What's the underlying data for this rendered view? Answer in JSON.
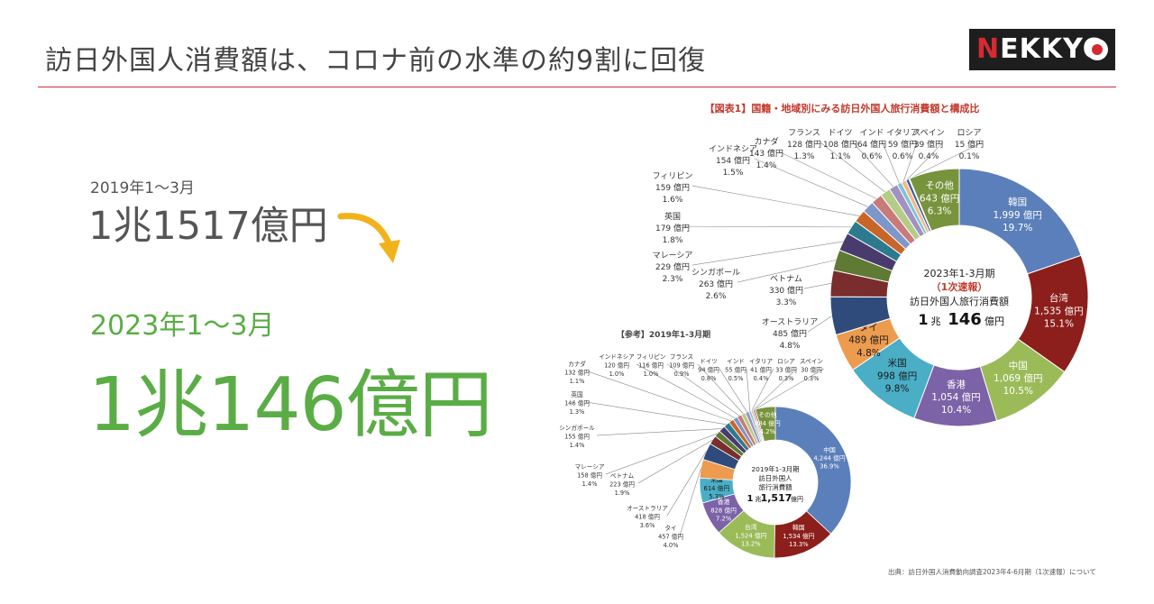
{
  "page": {
    "title": "訪日外国人消費額は、コロナ前の水準の約9割に回復",
    "logo": {
      "letters": "NEKKYO",
      "accent_letter": "N",
      "rest": "EKKYO"
    },
    "summary": {
      "period_2019": "2019年1〜3月",
      "value_2019": "1兆1517億円",
      "period_2023": "2023年1〜3月",
      "value_2023": "1兆146億円"
    },
    "source": "出典：訪日外国人消費動向調査2023年4-6月期（1次速報）について"
  },
  "colors": {
    "accent_green": "#5aad45",
    "title_rule": "#c9303a",
    "arrow": "#f2b21b",
    "chart_title_red": "#c0392b"
  },
  "chart_data": [
    {
      "type": "pie",
      "style": "donut",
      "title": "【図表1】国籍・地域別にみる訪日外国人旅行消費額と構成比",
      "center": {
        "period": "2023年1-3月期",
        "note": "（1次速報）",
        "label": "訪日外国人旅行消費額",
        "value_prefix": "1",
        "value_unit1": "兆",
        "value_main": "146",
        "value_unit2": "億円"
      },
      "slices": [
        {
          "name": "韓国",
          "value": "1,999 億円",
          "share": "19.7%",
          "pct": 19.7,
          "color": "#5b7fba"
        },
        {
          "name": "台湾",
          "value": "1,535 億円",
          "share": "15.1%",
          "pct": 15.1,
          "color": "#8c1f1b"
        },
        {
          "name": "中国",
          "value": "1,069 億円",
          "share": "10.5%",
          "pct": 10.5,
          "color": "#9bbb59"
        },
        {
          "name": "香港",
          "value": "1,054 億円",
          "share": "10.4%",
          "pct": 10.4,
          "color": "#7c62a6"
        },
        {
          "name": "米国",
          "value": "998 億円",
          "share": "9.8%",
          "pct": 9.8,
          "color": "#4aaec6"
        },
        {
          "name": "タイ",
          "value": "489 億円",
          "share": "4.8%",
          "pct": 4.8,
          "color": "#ed9b4f"
        },
        {
          "name": "オーストラリア",
          "value": "485 億円",
          "share": "4.8%",
          "pct": 4.8,
          "color": "#2e4b7b"
        },
        {
          "name": "ベトナム",
          "value": "330 億円",
          "share": "3.3%",
          "pct": 3.3,
          "color": "#7a2d2d"
        },
        {
          "name": "シンガポール",
          "value": "263 億円",
          "share": "2.6%",
          "pct": 2.6,
          "color": "#5e7a34"
        },
        {
          "name": "マレーシア",
          "value": "229 億円",
          "share": "2.3%",
          "pct": 2.3,
          "color": "#4a3b6e"
        },
        {
          "name": "英国",
          "value": "179 億円",
          "share": "1.8%",
          "pct": 1.8,
          "color": "#2d7a8e"
        },
        {
          "name": "フィリピン",
          "value": "159 億円",
          "share": "1.6%",
          "pct": 1.6,
          "color": "#c8662a"
        },
        {
          "name": "インドネシア",
          "value": "154 億円",
          "share": "1.5%",
          "pct": 1.5,
          "color": "#7d97c8"
        },
        {
          "name": "カナダ",
          "value": "143 億円",
          "share": "1.4%",
          "pct": 1.4,
          "color": "#c97b79"
        },
        {
          "name": "フランス",
          "value": "128 億円",
          "share": "1.3%",
          "pct": 1.3,
          "color": "#b3cd86"
        },
        {
          "name": "ドイツ",
          "value": "108 億円",
          "share": "1.1%",
          "pct": 1.1,
          "color": "#a391c2"
        },
        {
          "name": "インド",
          "value": "64 億円",
          "share": "0.6%",
          "pct": 0.6,
          "color": "#7fc4d6"
        },
        {
          "name": "イタリア",
          "value": "59 億円",
          "share": "0.6%",
          "pct": 0.6,
          "color": "#f3b884"
        },
        {
          "name": "スペイン",
          "value": "39 億円",
          "share": "0.4%",
          "pct": 0.4,
          "color": "#3b5e9a"
        },
        {
          "name": "ロシア",
          "value": "15 億円",
          "share": "0.1%",
          "pct": 0.1,
          "color": "#a33a35"
        },
        {
          "name": "その他",
          "value": "643 億円",
          "share": "6.3%",
          "pct": 6.3,
          "color": "#77933c"
        }
      ]
    },
    {
      "type": "pie",
      "style": "donut",
      "title": "【参考】2019年1-3月期",
      "center": {
        "period": "2019年1-3月期",
        "label1": "訪日外国人",
        "label2": "旅行消費額",
        "value_prefix": "1",
        "value_unit1": "兆",
        "value_main": "1,517",
        "value_unit2": "億円"
      },
      "slices": [
        {
          "name": "中国",
          "value": "4,244 億円",
          "share": "36.9%",
          "pct": 36.9,
          "color": "#5b7fba"
        },
        {
          "name": "韓国",
          "value": "1,534 億円",
          "share": "13.3%",
          "pct": 13.3,
          "color": "#8c1f1b"
        },
        {
          "name": "台湾",
          "value": "1,524 億円",
          "share": "13.2%",
          "pct": 13.2,
          "color": "#9bbb59"
        },
        {
          "name": "香港",
          "value": "828 億円",
          "share": "7.2%",
          "pct": 7.2,
          "color": "#7c62a6"
        },
        {
          "name": "米国",
          "value": "614 億円",
          "share": "5.3%",
          "pct": 5.3,
          "color": "#4aaec6"
        },
        {
          "name": "タイ",
          "value": "457 億円",
          "share": "4.0%",
          "pct": 4.0,
          "color": "#ed9b4f"
        },
        {
          "name": "オーストラリア",
          "value": "418 億円",
          "share": "3.6%",
          "pct": 3.6,
          "color": "#2e4b7b"
        },
        {
          "name": "ベトナム",
          "value": "223 億円",
          "share": "1.9%",
          "pct": 1.9,
          "color": "#7a2d2d"
        },
        {
          "name": "マレーシア",
          "value": "158 億円",
          "share": "1.4%",
          "pct": 1.4,
          "color": "#5e7a34"
        },
        {
          "name": "シンガポール",
          "value": "155 億円",
          "share": "1.4%",
          "pct": 1.4,
          "color": "#4a3b6e"
        },
        {
          "name": "英国",
          "value": "146 億円",
          "share": "1.3%",
          "pct": 1.3,
          "color": "#2d7a8e"
        },
        {
          "name": "カナダ",
          "value": "132 億円",
          "share": "1.1%",
          "pct": 1.1,
          "color": "#c8662a"
        },
        {
          "name": "インドネシア",
          "value": "120 億円",
          "share": "1.0%",
          "pct": 1.0,
          "color": "#7d97c8"
        },
        {
          "name": "フィリピン",
          "value": "116 億円",
          "share": "1.0%",
          "pct": 1.0,
          "color": "#c97b79"
        },
        {
          "name": "フランス",
          "value": "109 億円",
          "share": "0.9%",
          "pct": 0.9,
          "color": "#b3cd86"
        },
        {
          "name": "ドイツ",
          "value": "94 億円",
          "share": "0.8%",
          "pct": 0.8,
          "color": "#a391c2"
        },
        {
          "name": "インド",
          "value": "55 億円",
          "share": "0.5%",
          "pct": 0.5,
          "color": "#7fc4d6"
        },
        {
          "name": "イタリア",
          "value": "41 億円",
          "share": "0.4%",
          "pct": 0.4,
          "color": "#f3b884"
        },
        {
          "name": "ロシア",
          "value": "33 億円",
          "share": "0.3%",
          "pct": 0.3,
          "color": "#3b5e9a"
        },
        {
          "name": "スペイン",
          "value": "30 億円",
          "share": "0.3%",
          "pct": 0.3,
          "color": "#a33a35"
        },
        {
          "name": "その他",
          "value": "484 億円",
          "share": "4.2%",
          "pct": 4.2,
          "color": "#77933c"
        }
      ]
    }
  ]
}
